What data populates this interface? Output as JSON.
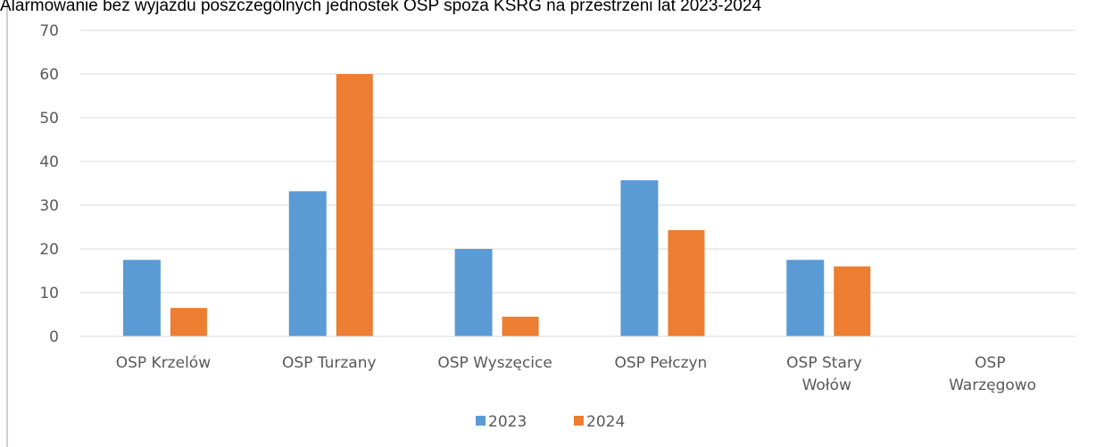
{
  "chart_data": {
    "type": "bar",
    "title": "Alarmowanie bez wyjazdu poszczególnych jednostek OSP spoza KSRG na przestrzeni lat 2023-2024",
    "categories": [
      "OSP Krzelów",
      "OSP Turzany",
      "OSP Wyszęcice",
      "OSP Pełczyn",
      "OSP Stary Wołów",
      "OSP Warzęgowo"
    ],
    "series": [
      {
        "name": "2023",
        "color": "#5b9bd5",
        "values": [
          17.5,
          33.2,
          20,
          35.7,
          17.5,
          0
        ]
      },
      {
        "name": "2024",
        "color": "#ed7d31",
        "values": [
          6.5,
          60,
          4.5,
          24.3,
          16,
          0
        ]
      }
    ],
    "ylim": [
      0,
      70
    ],
    "yticks": [
      0,
      10,
      20,
      30,
      40,
      50,
      60,
      70
    ],
    "grid": true,
    "legend": "bottom"
  }
}
